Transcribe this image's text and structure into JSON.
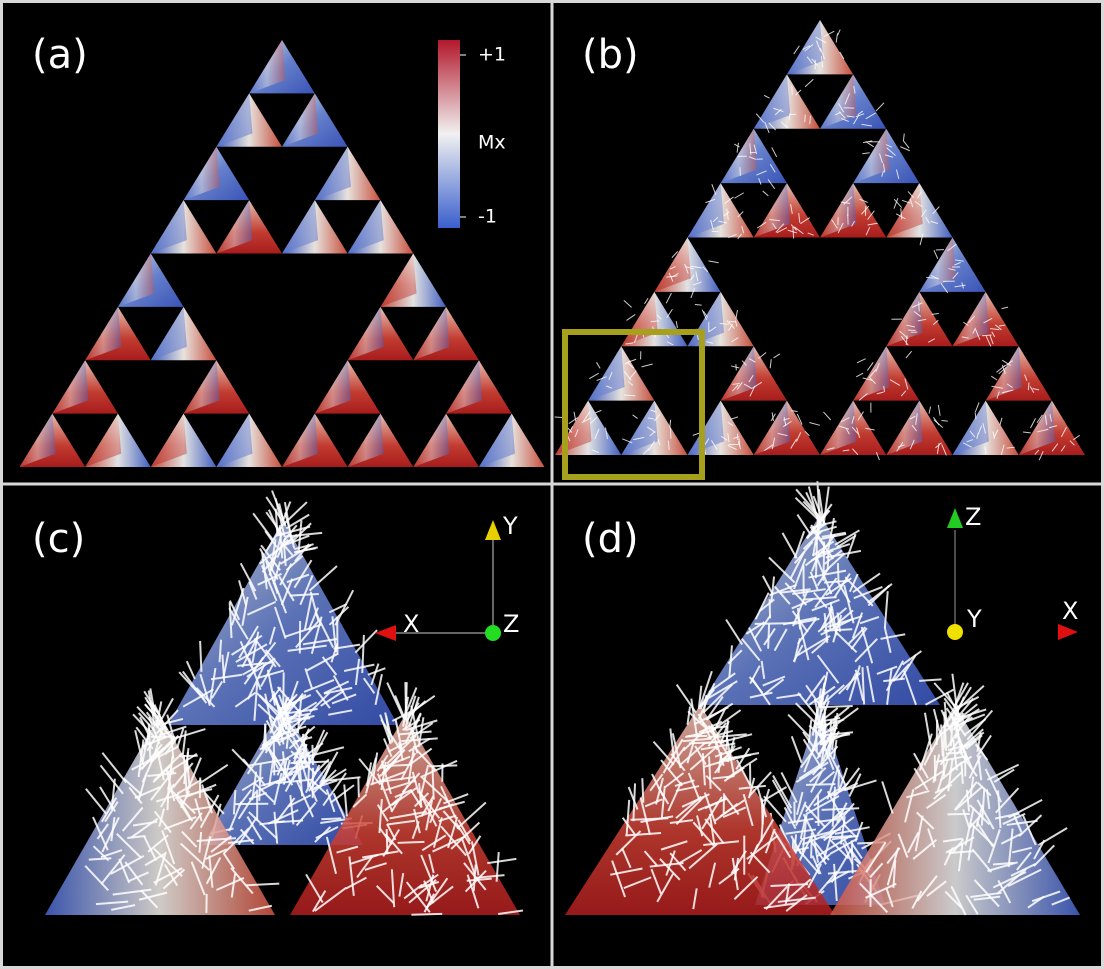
{
  "panels": [
    {
      "label": "(a)",
      "colorbar": {
        "title": "Mx",
        "lim": [
          -1,
          1
        ],
        "ticks": [
          {
            "value": 1,
            "label": "+1"
          },
          -1
        ]
      }
    },
    {
      "label": "(b)"
    },
    {
      "label": "(c)",
      "axes": [
        "X",
        "Y",
        "Z"
      ]
    },
    {
      "label": "(d)",
      "axes": [
        "Z",
        "Y",
        "X"
      ]
    }
  ]
}
